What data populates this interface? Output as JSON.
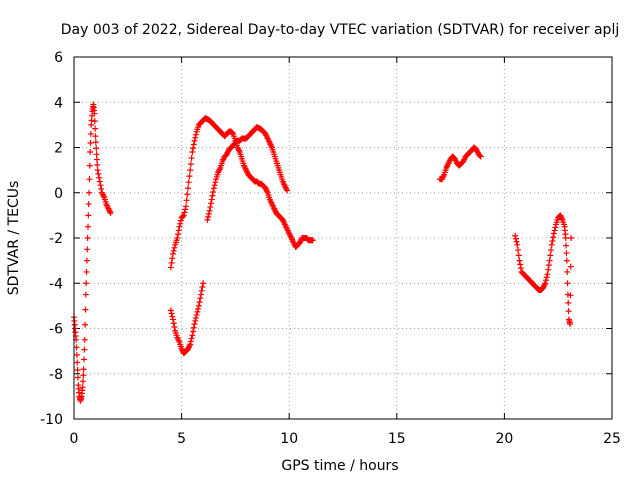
{
  "chart_data": {
    "type": "scatter",
    "title": "Day 003 of 2022, Sidereal Day-to-day VTEC variation (SDTVAR) for receiver aplj",
    "xlabel": "GPS time / hours",
    "ylabel": "SDTVAR / TECUs",
    "xlim": [
      0,
      25
    ],
    "ylim": [
      -10,
      6
    ],
    "grid": true,
    "marker": "+",
    "x_ticks": [
      "0",
      "5",
      "10",
      "15",
      "20",
      "25"
    ],
    "y_ticks": [
      "-10",
      "-8",
      "-6",
      "-4",
      "-2",
      "0",
      "2",
      "4",
      "6"
    ],
    "series": [
      {
        "name": "SDTVAR",
        "color": "#ff0000",
        "segments": [
          [
            [
              0.0,
              -5.5
            ],
            [
              0.05,
              -6.0
            ],
            [
              0.1,
              -6.5
            ],
            [
              0.15,
              -7.5
            ],
            [
              0.2,
              -8.5
            ],
            [
              0.25,
              -9.0
            ],
            [
              0.3,
              -9.2
            ],
            [
              0.35,
              -9.0
            ],
            [
              0.4,
              -8.6
            ],
            [
              0.45,
              -7.8
            ],
            [
              0.5,
              -6.5
            ],
            [
              0.55,
              -4.5
            ],
            [
              0.6,
              -3.0
            ],
            [
              0.65,
              -1.5
            ],
            [
              0.7,
              0.0
            ],
            [
              0.75,
              1.8
            ],
            [
              0.8,
              3.0
            ],
            [
              0.85,
              3.6
            ],
            [
              0.9,
              3.9
            ],
            [
              0.95,
              3.5
            ],
            [
              1.0,
              2.5
            ],
            [
              1.05,
              1.7
            ],
            [
              1.1,
              1.0
            ],
            [
              1.2,
              0.5
            ],
            [
              1.3,
              0.0
            ],
            [
              1.4,
              -0.2
            ],
            [
              1.5,
              -0.5
            ],
            [
              1.6,
              -0.7
            ],
            [
              1.7,
              -0.9
            ]
          ],
          [
            [
              4.5,
              -5.2
            ],
            [
              4.6,
              -5.6
            ],
            [
              4.7,
              -6.1
            ],
            [
              4.8,
              -6.4
            ],
            [
              4.9,
              -6.6
            ],
            [
              5.0,
              -6.9
            ],
            [
              5.1,
              -7.1
            ],
            [
              5.2,
              -7.0
            ],
            [
              5.3,
              -6.9
            ],
            [
              5.4,
              -6.7
            ],
            [
              5.5,
              -6.3
            ],
            [
              5.6,
              -5.8
            ],
            [
              5.7,
              -5.4
            ],
            [
              5.8,
              -5.0
            ],
            [
              5.9,
              -4.5
            ],
            [
              6.0,
              -4.0
            ]
          ],
          [
            [
              4.5,
              -3.3
            ],
            [
              4.6,
              -2.7
            ],
            [
              4.7,
              -2.3
            ],
            [
              4.8,
              -2.0
            ],
            [
              4.9,
              -1.5
            ],
            [
              5.0,
              -1.1
            ],
            [
              5.1,
              -1.0
            ],
            [
              5.2,
              -0.6
            ],
            [
              5.3,
              0.2
            ],
            [
              5.4,
              1.0
            ],
            [
              5.5,
              1.8
            ],
            [
              5.6,
              2.3
            ],
            [
              5.7,
              2.7
            ],
            [
              5.8,
              3.0
            ],
            [
              5.9,
              3.1
            ],
            [
              6.0,
              3.2
            ],
            [
              6.1,
              3.3
            ],
            [
              6.2,
              3.25
            ],
            [
              6.3,
              3.2
            ],
            [
              6.4,
              3.1
            ],
            [
              6.5,
              3.0
            ],
            [
              6.6,
              2.9
            ],
            [
              6.7,
              2.8
            ],
            [
              6.8,
              2.7
            ],
            [
              6.9,
              2.6
            ],
            [
              7.0,
              2.5
            ],
            [
              7.1,
              2.6
            ],
            [
              7.2,
              2.7
            ],
            [
              7.3,
              2.7
            ],
            [
              7.4,
              2.6
            ],
            [
              7.5,
              2.3
            ],
            [
              7.6,
              2.0
            ],
            [
              7.7,
              1.8
            ],
            [
              7.8,
              1.5
            ],
            [
              7.9,
              1.2
            ],
            [
              8.0,
              1.0
            ],
            [
              8.1,
              0.8
            ],
            [
              8.2,
              0.7
            ],
            [
              8.3,
              0.6
            ],
            [
              8.4,
              0.5
            ],
            [
              8.5,
              0.5
            ],
            [
              8.6,
              0.4
            ],
            [
              8.7,
              0.4
            ],
            [
              8.8,
              0.3
            ],
            [
              8.9,
              0.2
            ],
            [
              9.0,
              0.0
            ],
            [
              9.1,
              -0.3
            ],
            [
              9.2,
              -0.5
            ],
            [
              9.3,
              -0.7
            ],
            [
              9.4,
              -0.9
            ],
            [
              9.5,
              -1.0
            ],
            [
              9.6,
              -1.1
            ],
            [
              9.7,
              -1.2
            ],
            [
              9.8,
              -1.4
            ],
            [
              9.9,
              -1.6
            ],
            [
              10.0,
              -1.8
            ],
            [
              10.1,
              -2.0
            ],
            [
              10.2,
              -2.2
            ],
            [
              10.3,
              -2.4
            ],
            [
              10.4,
              -2.3
            ],
            [
              10.5,
              -2.2
            ],
            [
              10.6,
              -2.0
            ],
            [
              10.7,
              -2.0
            ],
            [
              10.8,
              -2.0
            ],
            [
              10.9,
              -2.1
            ],
            [
              11.0,
              -2.1
            ],
            [
              11.1,
              -2.1
            ]
          ],
          [
            [
              6.2,
              -1.2
            ],
            [
              6.3,
              -0.8
            ],
            [
              6.4,
              -0.3
            ],
            [
              6.5,
              0.2
            ],
            [
              6.6,
              0.6
            ],
            [
              6.7,
              0.9
            ],
            [
              6.8,
              1.1
            ],
            [
              6.9,
              1.4
            ],
            [
              7.0,
              1.6
            ],
            [
              7.1,
              1.7
            ],
            [
              7.2,
              1.9
            ],
            [
              7.3,
              2.0
            ],
            [
              7.4,
              2.1
            ],
            [
              7.5,
              2.2
            ],
            [
              7.6,
              2.3
            ],
            [
              7.7,
              2.3
            ],
            [
              7.8,
              2.4
            ],
            [
              7.9,
              2.4
            ],
            [
              8.0,
              2.4
            ],
            [
              8.1,
              2.5
            ],
            [
              8.2,
              2.6
            ],
            [
              8.3,
              2.7
            ],
            [
              8.4,
              2.8
            ],
            [
              8.5,
              2.9
            ],
            [
              8.6,
              2.85
            ],
            [
              8.7,
              2.8
            ],
            [
              8.8,
              2.7
            ],
            [
              8.9,
              2.6
            ],
            [
              9.0,
              2.4
            ],
            [
              9.1,
              2.2
            ],
            [
              9.2,
              2.0
            ],
            [
              9.3,
              1.7
            ],
            [
              9.4,
              1.4
            ],
            [
              9.5,
              1.1
            ],
            [
              9.6,
              0.8
            ],
            [
              9.7,
              0.5
            ],
            [
              9.8,
              0.3
            ],
            [
              9.9,
              0.1
            ]
          ],
          [
            [
              17.0,
              0.6
            ],
            [
              17.1,
              0.6
            ],
            [
              17.2,
              0.8
            ],
            [
              17.3,
              1.1
            ],
            [
              17.4,
              1.3
            ],
            [
              17.5,
              1.5
            ],
            [
              17.6,
              1.6
            ],
            [
              17.7,
              1.5
            ],
            [
              17.8,
              1.3
            ],
            [
              17.9,
              1.2
            ],
            [
              18.0,
              1.3
            ],
            [
              18.1,
              1.4
            ],
            [
              18.2,
              1.6
            ],
            [
              18.3,
              1.7
            ],
            [
              18.4,
              1.8
            ],
            [
              18.5,
              1.9
            ],
            [
              18.6,
              2.0
            ],
            [
              18.7,
              1.9
            ],
            [
              18.8,
              1.7
            ],
            [
              18.9,
              1.6
            ]
          ],
          [
            [
              20.5,
              -1.9
            ],
            [
              20.6,
              -2.3
            ],
            [
              20.7,
              -3.0
            ],
            [
              20.8,
              -3.5
            ],
            [
              20.9,
              -3.6
            ],
            [
              21.0,
              -3.7
            ],
            [
              21.1,
              -3.8
            ],
            [
              21.2,
              -3.9
            ],
            [
              21.3,
              -4.0
            ],
            [
              21.4,
              -4.1
            ],
            [
              21.5,
              -4.2
            ],
            [
              21.6,
              -4.3
            ],
            [
              21.7,
              -4.3
            ],
            [
              21.8,
              -4.2
            ],
            [
              21.9,
              -4.0
            ],
            [
              22.0,
              -3.6
            ],
            [
              22.1,
              -3.0
            ],
            [
              22.2,
              -2.3
            ],
            [
              22.3,
              -1.8
            ],
            [
              22.4,
              -1.4
            ],
            [
              22.5,
              -1.1
            ],
            [
              22.6,
              -1.0
            ],
            [
              22.7,
              -1.2
            ],
            [
              22.8,
              -1.5
            ],
            [
              22.85,
              -2.0
            ],
            [
              22.9,
              -3.0
            ],
            [
              22.95,
              -4.5
            ],
            [
              23.0,
              -5.6
            ],
            [
              23.05,
              -5.8
            ],
            [
              23.1,
              -2.0
            ]
          ]
        ]
      }
    ]
  }
}
